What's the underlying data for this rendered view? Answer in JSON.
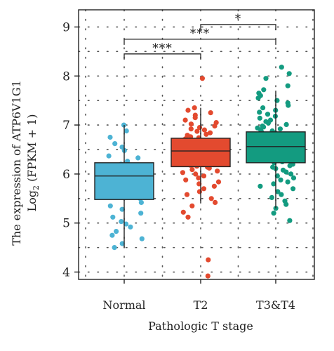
{
  "chart_data": {
    "type": "boxplot",
    "xlabel": "Pathologic T stage",
    "ylabel_line1": "The expression of ATP6V1G1",
    "ylabel_line2_prefix": "Log",
    "ylabel_line2_sub": "2",
    "ylabel_line2_suffix": " (FPKM + 1)",
    "ylim": [
      3.85,
      9.35
    ],
    "yticks": [
      4,
      5,
      6,
      7,
      8,
      9
    ],
    "grid": "dotted",
    "categories": [
      "Normal",
      "T2",
      "T3&T4"
    ],
    "boxes": [
      {
        "name": "Normal",
        "color": "#4db3d4",
        "min": 4.5,
        "q1": 5.48,
        "median": 5.96,
        "q3": 6.23,
        "max": 7.0,
        "points": [
          7.0,
          6.88,
          6.75,
          6.62,
          6.55,
          6.48,
          6.37,
          6.33,
          6.26,
          6.2,
          6.15,
          6.1,
          6.05,
          5.99,
          5.95,
          5.9,
          5.84,
          5.8,
          5.74,
          5.68,
          5.61,
          5.55,
          5.5,
          5.42,
          5.35,
          5.28,
          5.2,
          5.12,
          5.03,
          4.98,
          4.92,
          4.83,
          4.75,
          4.68,
          4.58,
          4.5
        ]
      },
      {
        "name": "T2",
        "color": "#e34a2f",
        "min": 5.4,
        "q1": 6.15,
        "median": 6.47,
        "q3": 6.73,
        "max": 7.35,
        "points": [
          7.95,
          7.35,
          7.3,
          7.25,
          7.2,
          7.15,
          7.1,
          7.05,
          7.02,
          6.98,
          6.95,
          6.92,
          6.9,
          6.87,
          6.84,
          6.81,
          6.79,
          6.76,
          6.74,
          6.72,
          6.7,
          6.68,
          6.66,
          6.64,
          6.62,
          6.6,
          6.58,
          6.56,
          6.55,
          6.53,
          6.51,
          6.5,
          6.48,
          6.46,
          6.45,
          6.43,
          6.41,
          6.4,
          6.38,
          6.36,
          6.34,
          6.32,
          6.3,
          6.28,
          6.26,
          6.24,
          6.22,
          6.2,
          6.18,
          6.16,
          6.14,
          6.12,
          6.09,
          6.06,
          6.03,
          6.0,
          5.96,
          5.92,
          5.88,
          5.84,
          5.8,
          5.75,
          5.7,
          5.64,
          5.58,
          5.5,
          5.42,
          5.35,
          5.22,
          5.12,
          4.25,
          3.92
        ]
      },
      {
        "name": "T3&T4",
        "color": "#139b80",
        "min": 5.3,
        "q1": 6.23,
        "median": 6.56,
        "q3": 6.86,
        "max": 7.7,
        "points": [
          8.18,
          8.05,
          7.95,
          7.8,
          7.72,
          7.65,
          7.6,
          7.55,
          7.5,
          7.45,
          7.4,
          7.35,
          7.3,
          7.26,
          7.22,
          7.18,
          7.14,
          7.1,
          7.07,
          7.04,
          7.01,
          6.98,
          6.96,
          6.94,
          6.92,
          6.9,
          6.88,
          6.86,
          6.84,
          6.82,
          6.8,
          6.78,
          6.76,
          6.74,
          6.72,
          6.7,
          6.68,
          6.66,
          6.64,
          6.62,
          6.6,
          6.59,
          6.57,
          6.55,
          6.54,
          6.52,
          6.5,
          6.48,
          6.47,
          6.45,
          6.43,
          6.41,
          6.39,
          6.37,
          6.35,
          6.33,
          6.31,
          6.29,
          6.27,
          6.25,
          6.23,
          6.2,
          6.17,
          6.14,
          6.11,
          6.08,
          6.04,
          6.0,
          5.96,
          5.92,
          5.88,
          5.84,
          5.8,
          5.75,
          5.7,
          5.64,
          5.58,
          5.52,
          5.45,
          5.38,
          5.3,
          5.2,
          5.05
        ]
      }
    ],
    "significance": [
      {
        "from": "Normal",
        "to": "T2",
        "label": "***",
        "y": 8.45
      },
      {
        "from": "Normal",
        "to": "T3&T4",
        "label": "***",
        "y": 8.75
      },
      {
        "from": "T2",
        "to": "T3&T4",
        "label": "*",
        "y": 9.05
      }
    ]
  }
}
